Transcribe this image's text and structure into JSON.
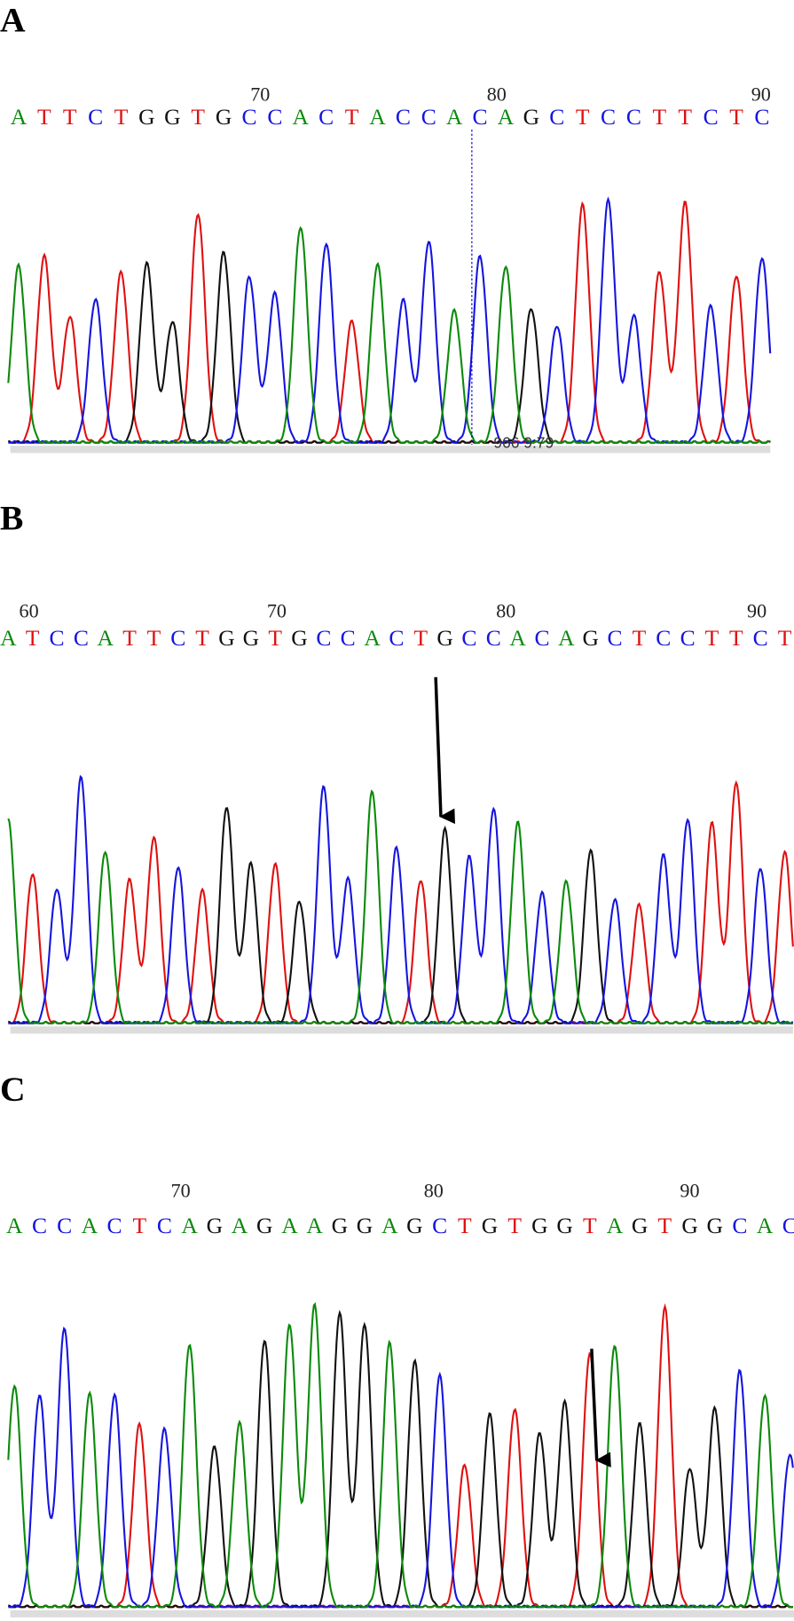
{
  "panels": [
    {
      "label": "A",
      "positions": [
        "70",
        "80",
        "90"
      ],
      "bases": [
        "A",
        "T",
        "T",
        "C",
        "T",
        "G",
        "G",
        "T",
        "G",
        "C",
        "C",
        "A",
        "C",
        "T",
        "A",
        "C",
        "C",
        "A",
        "C",
        "A",
        "G",
        "C",
        "T",
        "C",
        "C",
        "T",
        "T",
        "C",
        "T",
        "C"
      ],
      "annotation": "966 9:79"
    },
    {
      "label": "B",
      "positions": [
        "60",
        "70",
        "80",
        "90"
      ],
      "bases": [
        "A",
        "T",
        "C",
        "C",
        "A",
        "T",
        "T",
        "C",
        "T",
        "G",
        "G",
        "T",
        "G",
        "C",
        "C",
        "A",
        "C",
        "T",
        "G",
        "C",
        "C",
        "A",
        "C",
        "A",
        "G",
        "C",
        "T",
        "C",
        "C",
        "T",
        "T",
        "C",
        "T"
      ]
    },
    {
      "label": "C",
      "positions": [
        "70",
        "80",
        "90"
      ],
      "bases": [
        "A",
        "C",
        "C",
        "A",
        "C",
        "T",
        "C",
        "A",
        "G",
        "A",
        "G",
        "A",
        "A",
        "G",
        "G",
        "A",
        "G",
        "C",
        "T",
        "G",
        "T",
        "G",
        "G",
        "T",
        "A",
        "G",
        "T",
        "G",
        "G",
        "C",
        "A",
        "C"
      ]
    }
  ]
}
